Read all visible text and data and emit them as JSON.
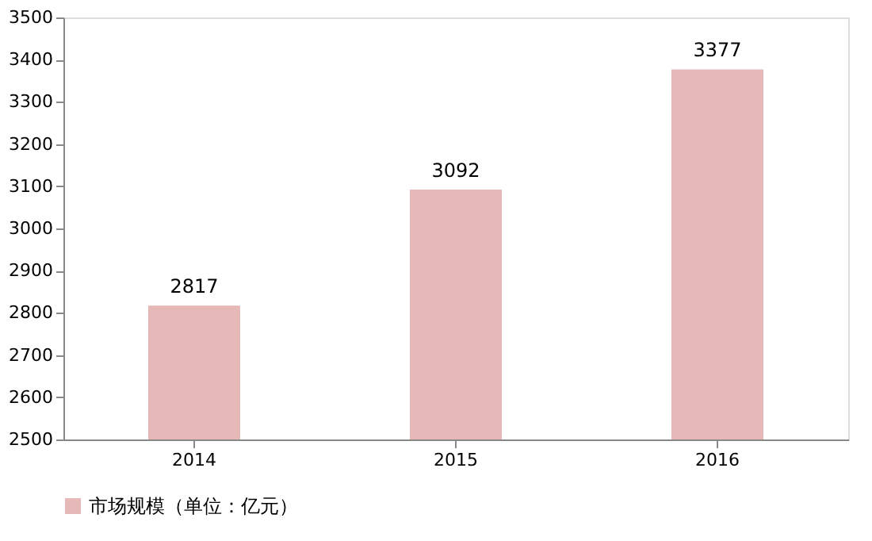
{
  "chart_data": {
    "type": "bar",
    "categories": [
      "2014",
      "2015",
      "2016"
    ],
    "series": [
      {
        "name": "市场规模（单位：亿元）",
        "color": "#e6b9b8",
        "values": [
          2817,
          3092,
          3377
        ]
      }
    ],
    "ylim": [
      2500,
      3500
    ],
    "yticks": [
      2500,
      2600,
      2700,
      2800,
      2900,
      3000,
      3100,
      3200,
      3300,
      3400,
      3500
    ],
    "data_labels": true,
    "grid": false,
    "legend": "bottom"
  }
}
